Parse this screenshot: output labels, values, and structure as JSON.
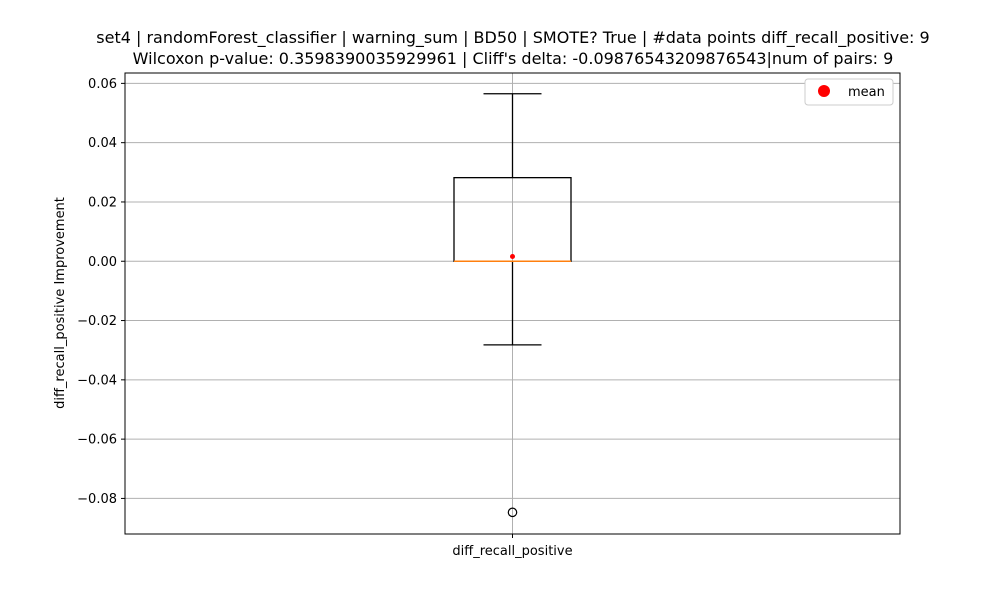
{
  "chart_data": {
    "type": "box",
    "title_line1": "set4 | randomForest_classifier | warning_sum | BD50 | SMOTE? True | #data points diff_recall_positive: 9",
    "title_line2": "Wilcoxon p-value: 0.3598390035929961 | Cliff's delta: -0.09876543209876543|num of pairs: 9",
    "xlabel": "",
    "ylabel": "diff_recall_positive Improvement",
    "categories": [
      "diff_recall_positive"
    ],
    "ylim": [
      -0.092,
      0.0635
    ],
    "yticks": [
      -0.08,
      -0.06,
      -0.04,
      -0.02,
      0.0,
      0.02,
      0.04,
      0.06
    ],
    "ytick_labels": [
      "−0.08",
      "−0.06",
      "−0.04",
      "−0.02",
      "0.00",
      "0.02",
      "0.04",
      "0.06"
    ],
    "grid": true,
    "legend": {
      "position": "top-right",
      "entries": [
        {
          "label": "mean",
          "color": "#ff0000"
        }
      ]
    },
    "box": {
      "whisker_low": -0.0282,
      "q1": 0.0,
      "median": 0.0,
      "q3": 0.0282,
      "whisker_high": 0.0565,
      "mean": 0.0016,
      "outliers": [
        -0.0847
      ]
    },
    "colors": {
      "box": "#000000",
      "median": "#ff7f0e",
      "mean": "#ff0000",
      "grid": "#b0b0b0"
    }
  }
}
